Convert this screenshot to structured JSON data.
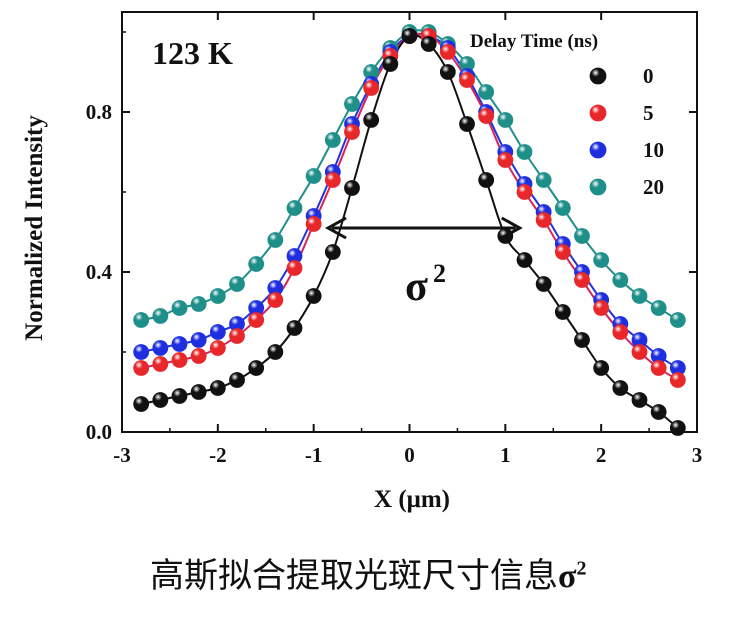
{
  "chart_data": {
    "type": "scatter",
    "temperature_label": "123 K",
    "xlabel": "X (μm)",
    "ylabel": "Normalized Intensity",
    "xlim": [
      -3,
      3
    ],
    "ylim": [
      0.0,
      1.05
    ],
    "x_ticks": [
      "-3",
      "-2",
      "-1",
      "0",
      "1",
      "2",
      "3"
    ],
    "y_ticks": [
      "0.0",
      "0.4",
      "0.8"
    ],
    "legend_title": "Delay Time (ns)",
    "legend_position": "top-right",
    "annotation": {
      "symbol": "σ",
      "sup": "2",
      "x_from": -0.85,
      "x_to": 1.15,
      "y": 0.51
    },
    "series": [
      {
        "name": "0",
        "color": "#111111",
        "fit_color": "#111111",
        "x": [
          -2.8,
          -2.6,
          -2.4,
          -2.2,
          -2.0,
          -1.8,
          -1.6,
          -1.4,
          -1.2,
          -1.0,
          -0.8,
          -0.6,
          -0.4,
          -0.2,
          0.0,
          0.2,
          0.4,
          0.6,
          0.8,
          1.0,
          1.2,
          1.4,
          1.6,
          1.8,
          2.0,
          2.2,
          2.4,
          2.6,
          2.8
        ],
        "y": [
          0.07,
          0.08,
          0.09,
          0.1,
          0.11,
          0.13,
          0.16,
          0.2,
          0.26,
          0.34,
          0.45,
          0.61,
          0.78,
          0.92,
          0.99,
          0.97,
          0.9,
          0.77,
          0.63,
          0.49,
          0.43,
          0.37,
          0.3,
          0.23,
          0.16,
          0.11,
          0.08,
          0.05,
          0.01
        ]
      },
      {
        "name": "5",
        "color": "#e8272b",
        "fit_color": "#d6245a",
        "x": [
          -2.8,
          -2.6,
          -2.4,
          -2.2,
          -2.0,
          -1.8,
          -1.6,
          -1.4,
          -1.2,
          -1.0,
          -0.8,
          -0.6,
          -0.4,
          -0.2,
          0.0,
          0.2,
          0.4,
          0.6,
          0.8,
          1.0,
          1.2,
          1.4,
          1.6,
          1.8,
          2.0,
          2.2,
          2.4,
          2.6,
          2.8
        ],
        "y": [
          0.16,
          0.17,
          0.18,
          0.19,
          0.21,
          0.24,
          0.28,
          0.33,
          0.41,
          0.52,
          0.63,
          0.75,
          0.86,
          0.94,
          0.99,
          0.99,
          0.95,
          0.88,
          0.79,
          0.68,
          0.6,
          0.53,
          0.45,
          0.38,
          0.31,
          0.25,
          0.2,
          0.16,
          0.13
        ]
      },
      {
        "name": "10",
        "color": "#1f2fe0",
        "fit_color": "#2233dd",
        "x": [
          -2.8,
          -2.6,
          -2.4,
          -2.2,
          -2.0,
          -1.8,
          -1.6,
          -1.4,
          -1.2,
          -1.0,
          -0.8,
          -0.6,
          -0.4,
          -0.2,
          0.0,
          0.2,
          0.4,
          0.6,
          0.8,
          1.0,
          1.2,
          1.4,
          1.6,
          1.8,
          2.0,
          2.2,
          2.4,
          2.6,
          2.8
        ],
        "y": [
          0.2,
          0.21,
          0.22,
          0.23,
          0.25,
          0.27,
          0.31,
          0.36,
          0.44,
          0.54,
          0.65,
          0.77,
          0.87,
          0.95,
          0.99,
          0.99,
          0.96,
          0.89,
          0.8,
          0.7,
          0.62,
          0.55,
          0.47,
          0.4,
          0.33,
          0.27,
          0.23,
          0.19,
          0.16
        ]
      },
      {
        "name": "20",
        "color": "#1f8f8a",
        "fit_color": "#1f8f8a",
        "x": [
          -2.8,
          -2.6,
          -2.4,
          -2.2,
          -2.0,
          -1.8,
          -1.6,
          -1.4,
          -1.2,
          -1.0,
          -0.8,
          -0.6,
          -0.4,
          -0.2,
          0.0,
          0.2,
          0.4,
          0.6,
          0.8,
          1.0,
          1.2,
          1.4,
          1.6,
          1.8,
          2.0,
          2.2,
          2.4,
          2.6,
          2.8
        ],
        "y": [
          0.28,
          0.29,
          0.31,
          0.32,
          0.34,
          0.37,
          0.42,
          0.48,
          0.56,
          0.64,
          0.73,
          0.82,
          0.9,
          0.96,
          1.0,
          1.0,
          0.97,
          0.92,
          0.85,
          0.78,
          0.7,
          0.63,
          0.56,
          0.49,
          0.43,
          0.38,
          0.34,
          0.31,
          0.28
        ]
      }
    ]
  },
  "caption": {
    "text": "高斯拟合提取光斑尺寸信息",
    "symbol": "σ",
    "sup": "2"
  }
}
